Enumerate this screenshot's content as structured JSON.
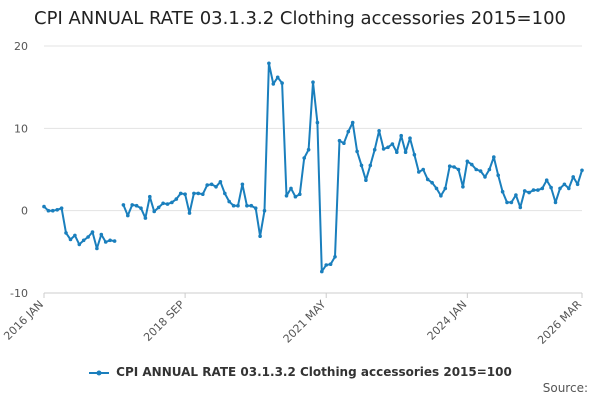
{
  "chart_data": {
    "type": "line",
    "title": "CPI ANNUAL RATE 03.1.3.2 Clothing accessories 2015=100",
    "xlabel": "",
    "ylabel": "",
    "ylim": [
      -10,
      20
    ],
    "yticks": [
      20,
      10,
      0,
      -10
    ],
    "xtick_labels": [
      "2016 JAN",
      "2018 SEP",
      "2021 MAY",
      "2024 JAN",
      "2026 MAR"
    ],
    "xtick_months": [
      0,
      32,
      64,
      96,
      122
    ],
    "x_range_months": [
      0,
      122
    ],
    "grid": "horizontal",
    "legend_position": "bottom-center",
    "series": [
      {
        "name": "CPI ANNUAL RATE 03.1.3.2 Clothing accessories 2015=100",
        "color": "#1a7fbd",
        "segments": [
          {
            "start_month": 0,
            "values": [
              0.5,
              0.0,
              0.0,
              0.1,
              0.3,
              -2.7,
              -3.5,
              -3.0,
              -4.1,
              -3.6,
              -3.2,
              -2.6,
              -4.6,
              -2.9,
              -3.8,
              -3.6,
              -3.7
            ]
          },
          {
            "start_month": 18,
            "values": [
              0.7,
              -0.6,
              0.7,
              0.6,
              0.3,
              -0.9,
              1.7,
              -0.1,
              0.4,
              0.9,
              0.8,
              1.0,
              1.4,
              2.1,
              2.0,
              -0.3,
              2.1,
              2.1,
              2.0,
              3.1,
              3.2,
              2.9,
              3.5,
              2.1,
              1.1,
              0.6,
              0.6,
              3.2,
              0.6,
              0.6,
              0.3,
              -3.1,
              0.0,
              17.9,
              15.4,
              16.2,
              15.5,
              1.8,
              2.7,
              1.7,
              2.0,
              6.4,
              7.4,
              15.6,
              10.7,
              -7.4,
              -6.6,
              -6.5,
              -5.6,
              8.5,
              8.2,
              9.6,
              10.7,
              7.2,
              5.5,
              3.7,
              5.5,
              7.4,
              9.7,
              7.5,
              7.7,
              8.1,
              7.1,
              9.1,
              7.1,
              8.8,
              6.8,
              4.7,
              5.0,
              3.8,
              3.4,
              2.7,
              1.8,
              2.7,
              5.4,
              5.3,
              5.0,
              2.9,
              6.0,
              5.6,
              5.0,
              4.8,
              4.1,
              5.0,
              6.5,
              4.3,
              2.3,
              1.0,
              1.0,
              1.9,
              0.4,
              2.4,
              2.2,
              2.5,
              2.5,
              2.7,
              3.7,
              2.8,
              1.0,
              2.7,
              3.2,
              2.7,
              4.1,
              3.2,
              4.9
            ]
          }
        ]
      }
    ]
  },
  "legend": {
    "label": "CPI ANNUAL RATE 03.1.3.2 Clothing accessories 2015=100"
  },
  "source_label": "Source:"
}
